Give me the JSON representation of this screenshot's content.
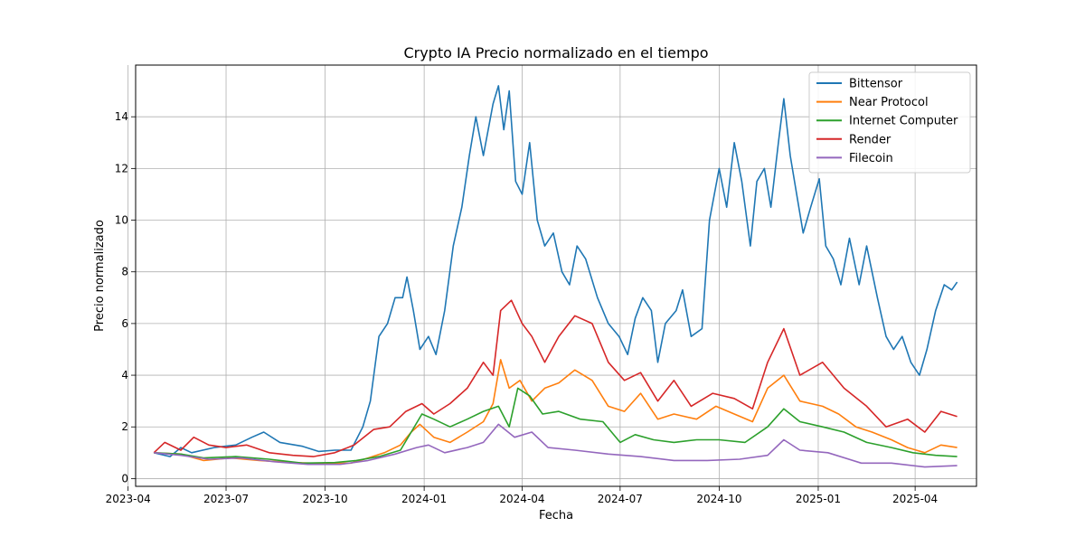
{
  "chart_data": {
    "type": "line",
    "title": "Crypto IA Precio normalizado en el tiempo",
    "xlabel": "Fecha",
    "ylabel": "Precio normalizado",
    "xlim": [
      "2023-04-08",
      "2025-05-28"
    ],
    "ylim": [
      -0.3,
      16.0
    ],
    "grid": true,
    "legend_position": "top-right",
    "x_ticks": [
      "2023-04",
      "2023-07",
      "2023-10",
      "2024-01",
      "2024-04",
      "2024-07",
      "2024-10",
      "2025-01",
      "2025-04"
    ],
    "y_ticks": [
      0,
      2,
      4,
      6,
      8,
      10,
      12,
      14
    ],
    "series": [
      {
        "name": "Bittensor",
        "color": "#1f77b4",
        "points": [
          [
            "2023-04-25",
            1.0
          ],
          [
            "2023-05-10",
            0.85
          ],
          [
            "2023-05-20",
            1.2
          ],
          [
            "2023-05-30",
            1.0
          ],
          [
            "2023-06-20",
            1.2
          ],
          [
            "2023-07-10",
            1.3
          ],
          [
            "2023-07-25",
            1.6
          ],
          [
            "2023-08-05",
            1.8
          ],
          [
            "2023-08-20",
            1.4
          ],
          [
            "2023-09-10",
            1.25
          ],
          [
            "2023-09-25",
            1.05
          ],
          [
            "2023-10-10",
            1.1
          ],
          [
            "2023-10-25",
            1.1
          ],
          [
            "2023-11-05",
            2.0
          ],
          [
            "2023-11-12",
            3.0
          ],
          [
            "2023-11-20",
            5.5
          ],
          [
            "2023-11-28",
            6.0
          ],
          [
            "2023-12-05",
            7.0
          ],
          [
            "2023-12-12",
            7.0
          ],
          [
            "2023-12-16",
            7.8
          ],
          [
            "2023-12-22",
            6.5
          ],
          [
            "2023-12-28",
            5.0
          ],
          [
            "2024-01-05",
            5.5
          ],
          [
            "2024-01-12",
            4.8
          ],
          [
            "2024-01-20",
            6.5
          ],
          [
            "2024-01-28",
            9.0
          ],
          [
            "2024-02-05",
            10.5
          ],
          [
            "2024-02-12",
            12.5
          ],
          [
            "2024-02-18",
            14.0
          ],
          [
            "2024-02-25",
            12.5
          ],
          [
            "2024-03-05",
            14.5
          ],
          [
            "2024-03-10",
            15.2
          ],
          [
            "2024-03-15",
            13.5
          ],
          [
            "2024-03-20",
            15.0
          ],
          [
            "2024-03-26",
            11.5
          ],
          [
            "2024-04-01",
            11.0
          ],
          [
            "2024-04-08",
            13.0
          ],
          [
            "2024-04-15",
            10.0
          ],
          [
            "2024-04-22",
            9.0
          ],
          [
            "2024-04-30",
            9.5
          ],
          [
            "2024-05-08",
            8.0
          ],
          [
            "2024-05-15",
            7.5
          ],
          [
            "2024-05-22",
            9.0
          ],
          [
            "2024-05-30",
            8.5
          ],
          [
            "2024-06-10",
            7.0
          ],
          [
            "2024-06-20",
            6.0
          ],
          [
            "2024-06-30",
            5.5
          ],
          [
            "2024-07-08",
            4.8
          ],
          [
            "2024-07-15",
            6.2
          ],
          [
            "2024-07-22",
            7.0
          ],
          [
            "2024-07-30",
            6.5
          ],
          [
            "2024-08-05",
            4.5
          ],
          [
            "2024-08-12",
            6.0
          ],
          [
            "2024-08-22",
            6.5
          ],
          [
            "2024-08-28",
            7.3
          ],
          [
            "2024-09-05",
            5.5
          ],
          [
            "2024-09-15",
            5.8
          ],
          [
            "2024-09-22",
            10.0
          ],
          [
            "2024-10-01",
            12.0
          ],
          [
            "2024-10-08",
            10.5
          ],
          [
            "2024-10-15",
            13.0
          ],
          [
            "2024-10-22",
            11.5
          ],
          [
            "2024-10-30",
            9.0
          ],
          [
            "2024-11-05",
            11.5
          ],
          [
            "2024-11-12",
            12.0
          ],
          [
            "2024-11-18",
            10.5
          ],
          [
            "2024-11-25",
            13.0
          ],
          [
            "2024-11-30",
            14.7
          ],
          [
            "2024-12-06",
            12.5
          ],
          [
            "2024-12-12",
            11.0
          ],
          [
            "2024-12-18",
            9.5
          ],
          [
            "2024-12-25",
            10.5
          ],
          [
            "2025-01-02",
            11.6
          ],
          [
            "2025-01-08",
            9.0
          ],
          [
            "2025-01-15",
            8.5
          ],
          [
            "2025-01-22",
            7.5
          ],
          [
            "2025-01-30",
            9.3
          ],
          [
            "2025-02-08",
            7.5
          ],
          [
            "2025-02-15",
            9.0
          ],
          [
            "2025-02-25",
            7.0
          ],
          [
            "2025-03-05",
            5.5
          ],
          [
            "2025-03-12",
            5.0
          ],
          [
            "2025-03-20",
            5.5
          ],
          [
            "2025-03-28",
            4.5
          ],
          [
            "2025-04-05",
            4.0
          ],
          [
            "2025-04-12",
            5.0
          ],
          [
            "2025-04-20",
            6.5
          ],
          [
            "2025-04-28",
            7.5
          ],
          [
            "2025-05-05",
            7.3
          ],
          [
            "2025-05-10",
            7.6
          ]
        ]
      },
      {
        "name": "Near Protocol",
        "color": "#ff7f0e",
        "points": [
          [
            "2023-04-25",
            1.0
          ],
          [
            "2023-05-20",
            0.95
          ],
          [
            "2023-06-10",
            0.7
          ],
          [
            "2023-07-05",
            0.8
          ],
          [
            "2023-08-01",
            0.7
          ],
          [
            "2023-09-01",
            0.62
          ],
          [
            "2023-10-01",
            0.58
          ],
          [
            "2023-10-25",
            0.6
          ],
          [
            "2023-11-10",
            0.8
          ],
          [
            "2023-11-25",
            1.0
          ],
          [
            "2023-12-10",
            1.3
          ],
          [
            "2023-12-20",
            1.8
          ],
          [
            "2023-12-28",
            2.1
          ],
          [
            "2024-01-10",
            1.6
          ],
          [
            "2024-01-25",
            1.4
          ],
          [
            "2024-02-10",
            1.8
          ],
          [
            "2024-02-25",
            2.2
          ],
          [
            "2024-03-05",
            2.9
          ],
          [
            "2024-03-12",
            4.6
          ],
          [
            "2024-03-20",
            3.5
          ],
          [
            "2024-03-30",
            3.8
          ],
          [
            "2024-04-10",
            3.0
          ],
          [
            "2024-04-22",
            3.5
          ],
          [
            "2024-05-05",
            3.7
          ],
          [
            "2024-05-20",
            4.2
          ],
          [
            "2024-06-05",
            3.8
          ],
          [
            "2024-06-20",
            2.8
          ],
          [
            "2024-07-05",
            2.6
          ],
          [
            "2024-07-20",
            3.3
          ],
          [
            "2024-08-05",
            2.3
          ],
          [
            "2024-08-20",
            2.5
          ],
          [
            "2024-09-10",
            2.3
          ],
          [
            "2024-09-28",
            2.8
          ],
          [
            "2024-10-15",
            2.5
          ],
          [
            "2024-11-01",
            2.2
          ],
          [
            "2024-11-15",
            3.5
          ],
          [
            "2024-11-30",
            4.0
          ],
          [
            "2024-12-15",
            3.0
          ],
          [
            "2025-01-05",
            2.8
          ],
          [
            "2025-01-20",
            2.5
          ],
          [
            "2025-02-05",
            2.0
          ],
          [
            "2025-02-20",
            1.8
          ],
          [
            "2025-03-10",
            1.5
          ],
          [
            "2025-03-25",
            1.2
          ],
          [
            "2025-04-10",
            1.0
          ],
          [
            "2025-04-25",
            1.3
          ],
          [
            "2025-05-10",
            1.2
          ]
        ]
      },
      {
        "name": "Internet Computer",
        "color": "#2ca02c",
        "points": [
          [
            "2023-04-25",
            1.0
          ],
          [
            "2023-05-20",
            0.95
          ],
          [
            "2023-06-10",
            0.8
          ],
          [
            "2023-07-10",
            0.85
          ],
          [
            "2023-08-10",
            0.75
          ],
          [
            "2023-09-10",
            0.6
          ],
          [
            "2023-10-10",
            0.62
          ],
          [
            "2023-10-30",
            0.7
          ],
          [
            "2023-11-20",
            0.85
          ],
          [
            "2023-12-10",
            1.1
          ],
          [
            "2023-12-20",
            1.8
          ],
          [
            "2023-12-30",
            2.5
          ],
          [
            "2024-01-10",
            2.3
          ],
          [
            "2024-01-25",
            2.0
          ],
          [
            "2024-02-10",
            2.3
          ],
          [
            "2024-02-25",
            2.6
          ],
          [
            "2024-03-10",
            2.8
          ],
          [
            "2024-03-20",
            2.0
          ],
          [
            "2024-03-28",
            3.5
          ],
          [
            "2024-04-08",
            3.2
          ],
          [
            "2024-04-20",
            2.5
          ],
          [
            "2024-05-05",
            2.6
          ],
          [
            "2024-05-25",
            2.3
          ],
          [
            "2024-06-15",
            2.2
          ],
          [
            "2024-07-01",
            1.4
          ],
          [
            "2024-07-15",
            1.7
          ],
          [
            "2024-08-01",
            1.5
          ],
          [
            "2024-08-20",
            1.4
          ],
          [
            "2024-09-10",
            1.5
          ],
          [
            "2024-10-01",
            1.5
          ],
          [
            "2024-10-25",
            1.4
          ],
          [
            "2024-11-15",
            2.0
          ],
          [
            "2024-11-30",
            2.7
          ],
          [
            "2024-12-15",
            2.2
          ],
          [
            "2025-01-05",
            2.0
          ],
          [
            "2025-01-25",
            1.8
          ],
          [
            "2025-02-15",
            1.4
          ],
          [
            "2025-03-10",
            1.2
          ],
          [
            "2025-03-30",
            1.0
          ],
          [
            "2025-04-20",
            0.9
          ],
          [
            "2025-05-10",
            0.85
          ]
        ]
      },
      {
        "name": "Render",
        "color": "#d62728",
        "points": [
          [
            "2023-04-25",
            1.0
          ],
          [
            "2023-05-05",
            1.4
          ],
          [
            "2023-05-20",
            1.1
          ],
          [
            "2023-06-01",
            1.6
          ],
          [
            "2023-06-15",
            1.3
          ],
          [
            "2023-07-01",
            1.2
          ],
          [
            "2023-07-20",
            1.3
          ],
          [
            "2023-08-10",
            1.0
          ],
          [
            "2023-09-01",
            0.9
          ],
          [
            "2023-09-20",
            0.85
          ],
          [
            "2023-10-10",
            1.0
          ],
          [
            "2023-10-28",
            1.3
          ],
          [
            "2023-11-15",
            1.9
          ],
          [
            "2023-11-30",
            2.0
          ],
          [
            "2023-12-15",
            2.6
          ],
          [
            "2023-12-30",
            2.9
          ],
          [
            "2024-01-10",
            2.5
          ],
          [
            "2024-01-25",
            2.9
          ],
          [
            "2024-02-10",
            3.5
          ],
          [
            "2024-02-25",
            4.5
          ],
          [
            "2024-03-05",
            4.0
          ],
          [
            "2024-03-12",
            6.5
          ],
          [
            "2024-03-22",
            6.9
          ],
          [
            "2024-04-01",
            6.0
          ],
          [
            "2024-04-10",
            5.5
          ],
          [
            "2024-04-22",
            4.5
          ],
          [
            "2024-05-05",
            5.5
          ],
          [
            "2024-05-20",
            6.3
          ],
          [
            "2024-06-05",
            6.0
          ],
          [
            "2024-06-20",
            4.5
          ],
          [
            "2024-07-05",
            3.8
          ],
          [
            "2024-07-20",
            4.1
          ],
          [
            "2024-08-05",
            3.0
          ],
          [
            "2024-08-20",
            3.8
          ],
          [
            "2024-09-05",
            2.8
          ],
          [
            "2024-09-25",
            3.3
          ],
          [
            "2024-10-15",
            3.1
          ],
          [
            "2024-11-01",
            2.7
          ],
          [
            "2024-11-15",
            4.5
          ],
          [
            "2024-11-30",
            5.8
          ],
          [
            "2024-12-15",
            4.0
          ],
          [
            "2025-01-05",
            4.5
          ],
          [
            "2025-01-25",
            3.5
          ],
          [
            "2025-02-15",
            2.8
          ],
          [
            "2025-03-05",
            2.0
          ],
          [
            "2025-03-25",
            2.3
          ],
          [
            "2025-04-10",
            1.8
          ],
          [
            "2025-04-25",
            2.6
          ],
          [
            "2025-05-10",
            2.4
          ]
        ]
      },
      {
        "name": "Filecoin",
        "color": "#9467bd",
        "points": [
          [
            "2023-04-25",
            1.0
          ],
          [
            "2023-05-20",
            0.9
          ],
          [
            "2023-06-15",
            0.75
          ],
          [
            "2023-07-15",
            0.8
          ],
          [
            "2023-08-15",
            0.65
          ],
          [
            "2023-09-15",
            0.55
          ],
          [
            "2023-10-15",
            0.55
          ],
          [
            "2023-11-10",
            0.7
          ],
          [
            "2023-12-05",
            0.95
          ],
          [
            "2023-12-25",
            1.2
          ],
          [
            "2024-01-05",
            1.3
          ],
          [
            "2024-01-20",
            1.0
          ],
          [
            "2024-02-10",
            1.2
          ],
          [
            "2024-02-25",
            1.4
          ],
          [
            "2024-03-10",
            2.1
          ],
          [
            "2024-03-25",
            1.6
          ],
          [
            "2024-04-10",
            1.8
          ],
          [
            "2024-04-25",
            1.2
          ],
          [
            "2024-05-20",
            1.1
          ],
          [
            "2024-06-20",
            0.95
          ],
          [
            "2024-07-20",
            0.85
          ],
          [
            "2024-08-20",
            0.7
          ],
          [
            "2024-09-20",
            0.7
          ],
          [
            "2024-10-20",
            0.75
          ],
          [
            "2024-11-15",
            0.9
          ],
          [
            "2024-11-30",
            1.5
          ],
          [
            "2024-12-15",
            1.1
          ],
          [
            "2025-01-10",
            1.0
          ],
          [
            "2025-02-10",
            0.6
          ],
          [
            "2025-03-10",
            0.6
          ],
          [
            "2025-04-10",
            0.45
          ],
          [
            "2025-05-10",
            0.5
          ]
        ]
      }
    ]
  }
}
